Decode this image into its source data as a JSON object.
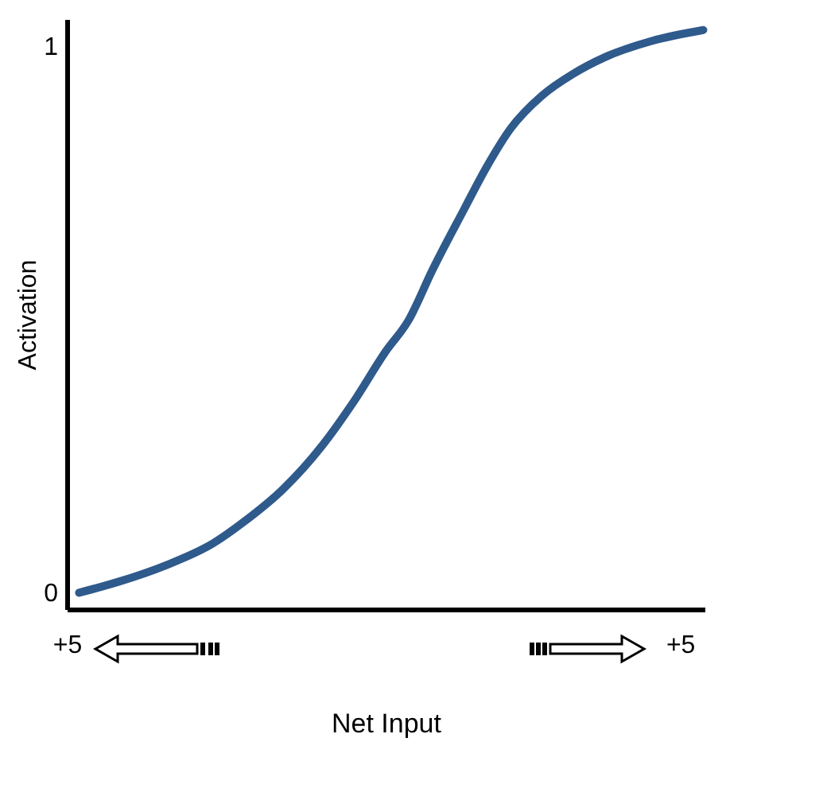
{
  "chart_data": {
    "type": "line",
    "xlabel": "Net Input",
    "ylabel": "Activation",
    "x": [
      -4.8,
      -4.16,
      -3.39,
      -2.62,
      -2.11,
      -1.47,
      -0.83,
      -0.32,
      0.19,
      0.58,
      0.96,
      1.47,
      1.85,
      2.24,
      2.75,
      3.26,
      3.77,
      4.54,
      5.38
    ],
    "series": [
      {
        "color": "#2f5a8c",
        "values": [
          0.0,
          0.02,
          0.05,
          0.09,
          0.13,
          0.19,
          0.27,
          0.35,
          0.44,
          0.5,
          0.59,
          0.7,
          0.78,
          0.85,
          0.91,
          0.95,
          0.98,
          1.01,
          1.03
        ]
      }
    ],
    "xlim": [
      -5,
      5.4
    ],
    "ylim": [
      -0.03,
      1.05
    ],
    "xticks": [
      {
        "value": -5,
        "label": "+5"
      },
      {
        "value": 5,
        "label": "+5"
      }
    ],
    "yticks": [
      0,
      1
    ],
    "grid": false,
    "marker": "none",
    "line_style": "solid"
  }
}
